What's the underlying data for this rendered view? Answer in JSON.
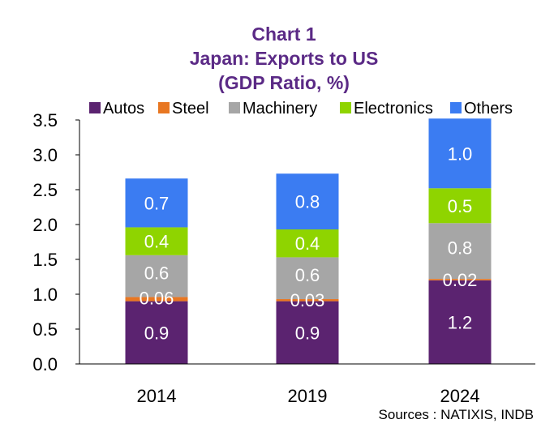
{
  "chart_data": {
    "type": "bar",
    "stacked": true,
    "title_lines": [
      "Chart 1",
      "Japan: Exports to US",
      "(GDP Ratio, %)"
    ],
    "categories": [
      "2014",
      "2019",
      "2024"
    ],
    "series": [
      {
        "name": "Autos",
        "color": "#5b2370",
        "values": [
          0.9,
          0.9,
          1.2
        ],
        "labels": [
          "0.9",
          "0.9",
          "1.2"
        ]
      },
      {
        "name": "Steel",
        "color": "#e87722",
        "values": [
          0.06,
          0.03,
          0.02
        ],
        "labels": [
          "0.06",
          "0.03",
          "0.02"
        ]
      },
      {
        "name": "Machinery",
        "color": "#a6a6a6",
        "values": [
          0.6,
          0.6,
          0.8
        ],
        "labels": [
          "0.6",
          "0.6",
          "0.8"
        ]
      },
      {
        "name": "Electronics",
        "color": "#8fd400",
        "values": [
          0.4,
          0.4,
          0.5
        ],
        "labels": [
          "0.4",
          "0.4",
          "0.5"
        ]
      },
      {
        "name": "Others",
        "color": "#3b7cf2",
        "values": [
          0.7,
          0.8,
          1.0
        ],
        "labels": [
          "0.7",
          "0.8",
          "1.0"
        ]
      }
    ],
    "ylim": [
      0,
      3.5
    ],
    "yticks": [
      "0.0",
      "0.5",
      "1.0",
      "1.5",
      "2.0",
      "2.5",
      "3.0",
      "3.5"
    ],
    "legend_position": "top",
    "source": "Sources : NATIXIS, INDB"
  }
}
